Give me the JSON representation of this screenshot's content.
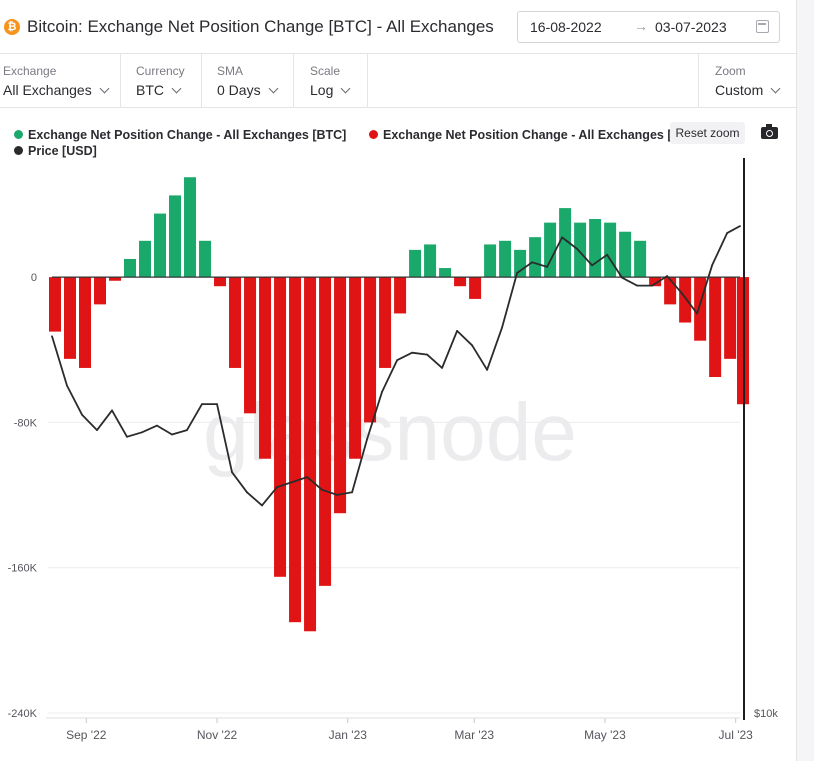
{
  "header": {
    "logo_glyph": "₿",
    "title": "Bitcoin: Exchange Net Position Change [BTC] - All Exchanges",
    "date_start": "16-08-2022",
    "date_arrow": "→",
    "date_end": "03-07-2023",
    "calendar_icon": "calendar-icon"
  },
  "controls": {
    "exchange": {
      "label": "Exchange",
      "value": "All Exchanges"
    },
    "currency": {
      "label": "Currency",
      "value": "BTC"
    },
    "sma": {
      "label": "SMA",
      "value": "0 Days"
    },
    "scale": {
      "label": "Scale",
      "value": "Log"
    },
    "zoom": {
      "label": "Zoom",
      "value": "Custom"
    }
  },
  "legend": {
    "positive": "Exchange Net Position Change - All Exchanges [BTC]",
    "negative": "Exchange Net Position Change - All Exchanges [BTC]",
    "price": "Price [USD]"
  },
  "toolbar": {
    "reset_zoom": "Reset zoom",
    "camera_icon": "camera-icon"
  },
  "colors": {
    "positive": "#1aa86b",
    "negative": "#e01414",
    "price": "#2b2b2b",
    "zero_line": "#333333"
  },
  "chart_data": {
    "type": "bar",
    "x_ticks": [
      "Sep '22",
      "Nov '22",
      "Jan '23",
      "Mar '23",
      "May '23",
      "Jul '23"
    ],
    "y_ticks": [
      "0",
      "-80K",
      "-160K",
      "-240K"
    ],
    "y_tick_values": [
      0,
      -80000,
      -160000,
      -240000
    ],
    "ylim": [
      -240000,
      70000
    ],
    "price_axis_tick": "$10k",
    "watermark": "glassnode",
    "series": [
      {
        "name": "Exchange Net Position Change - All Exchanges [BTC]",
        "kind": "bar",
        "x": [
          "2022-08-16",
          "2022-08-23",
          "2022-08-30",
          "2022-09-06",
          "2022-09-13",
          "2022-09-20",
          "2022-09-27",
          "2022-10-04",
          "2022-10-11",
          "2022-10-18",
          "2022-10-25",
          "2022-11-01",
          "2022-11-08",
          "2022-11-15",
          "2022-11-22",
          "2022-11-29",
          "2022-12-06",
          "2022-12-13",
          "2022-12-20",
          "2022-12-27",
          "2023-01-03",
          "2023-01-10",
          "2023-01-17",
          "2023-01-24",
          "2023-01-31",
          "2023-02-07",
          "2023-02-14",
          "2023-02-21",
          "2023-02-28",
          "2023-03-07",
          "2023-03-14",
          "2023-03-21",
          "2023-03-28",
          "2023-04-04",
          "2023-04-11",
          "2023-04-18",
          "2023-04-25",
          "2023-05-02",
          "2023-05-09",
          "2023-05-16",
          "2023-05-23",
          "2023-05-30",
          "2023-06-06",
          "2023-06-13",
          "2023-06-20",
          "2023-06-27",
          "2023-07-03"
        ],
        "values": [
          -30000,
          -45000,
          -50000,
          -15000,
          -2000,
          10000,
          20000,
          35000,
          45000,
          55000,
          20000,
          -5000,
          -50000,
          -75000,
          -100000,
          -165000,
          -190000,
          -195000,
          -170000,
          -130000,
          -100000,
          -80000,
          -50000,
          -20000,
          15000,
          18000,
          5000,
          -5000,
          -12000,
          18000,
          20000,
          15000,
          22000,
          30000,
          38000,
          30000,
          32000,
          30000,
          25000,
          20000,
          -5000,
          -15000,
          -25000,
          -35000,
          -55000,
          -45000,
          -70000
        ]
      },
      {
        "name": "Price [USD]",
        "kind": "line",
        "x": [
          "2022-08-16",
          "2022-08-23",
          "2022-08-30",
          "2022-09-06",
          "2022-09-13",
          "2022-09-20",
          "2022-09-27",
          "2022-10-04",
          "2022-10-11",
          "2022-10-18",
          "2022-10-25",
          "2022-11-01",
          "2022-11-08",
          "2022-11-15",
          "2022-11-22",
          "2022-11-29",
          "2022-12-06",
          "2022-12-13",
          "2022-12-20",
          "2022-12-27",
          "2023-01-03",
          "2023-01-10",
          "2023-01-17",
          "2023-01-24",
          "2023-01-31",
          "2023-02-07",
          "2023-02-14",
          "2023-02-21",
          "2023-02-28",
          "2023-03-07",
          "2023-03-14",
          "2023-03-21",
          "2023-03-28",
          "2023-04-04",
          "2023-04-11",
          "2023-04-18",
          "2023-04-25",
          "2023-05-02",
          "2023-05-09",
          "2023-05-16",
          "2023-05-23",
          "2023-05-30",
          "2023-06-06",
          "2023-06-13",
          "2023-06-20",
          "2023-06-27",
          "2023-07-03"
        ],
        "values": [
          24000,
          21400,
          20000,
          19300,
          20200,
          19000,
          19200,
          19500,
          19100,
          19300,
          20500,
          20500,
          17500,
          16700,
          16200,
          16900,
          17100,
          17300,
          16800,
          16600,
          16700,
          18900,
          21100,
          22700,
          23100,
          23000,
          22300,
          24300,
          23500,
          22200,
          24500,
          27800,
          28500,
          28200,
          30200,
          29400,
          28300,
          29000,
          27500,
          27000,
          27000,
          27600,
          26500,
          25300,
          28300,
          30500,
          31000
        ]
      }
    ]
  }
}
